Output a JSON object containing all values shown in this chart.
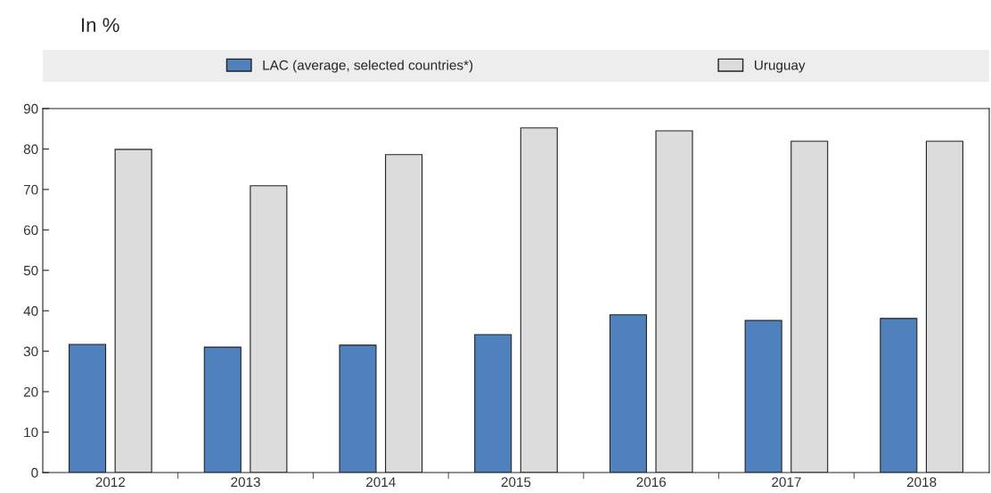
{
  "chart_data": {
    "type": "bar",
    "title": "In %",
    "categories": [
      "2012",
      "2013",
      "2014",
      "2015",
      "2016",
      "2017",
      "2018"
    ],
    "series": [
      {
        "name": "LAC (average, selected countries*)",
        "color": "#4e81bd",
        "values": [
          31.7,
          31.0,
          31.5,
          34.1,
          39.0,
          37.6,
          38.1
        ]
      },
      {
        "name": "Uruguay",
        "color": "#dcdcdc",
        "values": [
          79.9,
          70.9,
          78.6,
          85.2,
          84.5,
          81.9,
          81.9
        ]
      }
    ],
    "ylim": [
      0,
      90
    ],
    "yticks": [
      0,
      10,
      20,
      30,
      40,
      50,
      60,
      70,
      80,
      90
    ],
    "grid": false,
    "legend": "top"
  }
}
